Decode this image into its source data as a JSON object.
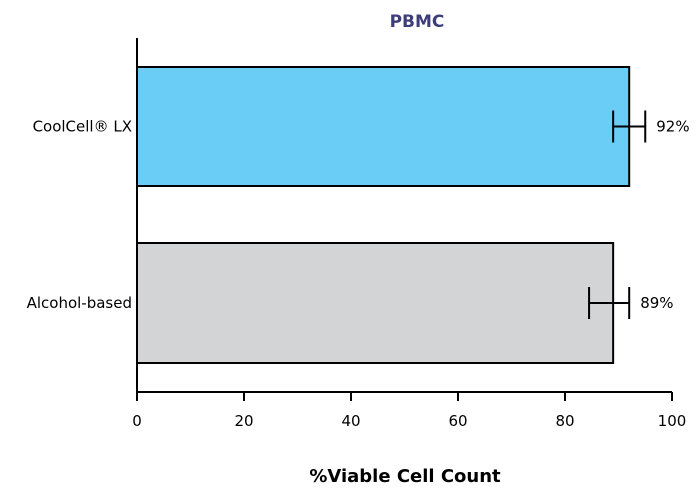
{
  "chart_data": {
    "type": "bar",
    "orientation": "horizontal",
    "title": "PBMC",
    "xlabel": "%Viable Cell Count",
    "ylabel": "",
    "xlim": [
      0,
      100
    ],
    "xticks": [
      0,
      20,
      40,
      60,
      80,
      100
    ],
    "xtick_labels": [
      "0",
      "20",
      "40",
      "60",
      "80",
      "100"
    ],
    "grid": false,
    "bars": [
      {
        "category": "CoolCell® LX",
        "value": 92,
        "error_low": 89,
        "error_high": 95,
        "label": "92%",
        "color": "#6acdf5"
      },
      {
        "category": "Alcohol-based",
        "value": 89,
        "error_low": 84.5,
        "error_high": 92,
        "label": "89%",
        "color": "#d3d4d6"
      }
    ],
    "colors": {
      "title": "#3d3d7a",
      "axis": "#000000",
      "bar_outline": "#000000"
    }
  }
}
